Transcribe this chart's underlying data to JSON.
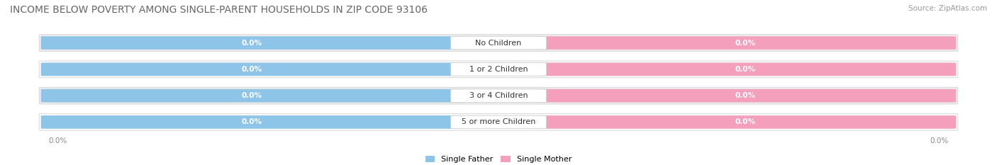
{
  "title": "INCOME BELOW POVERTY AMONG SINGLE-PARENT HOUSEHOLDS IN ZIP CODE 93106",
  "source_text": "Source: ZipAtlas.com",
  "categories": [
    "No Children",
    "1 or 2 Children",
    "3 or 4 Children",
    "5 or more Children"
  ],
  "father_values": [
    0.0,
    0.0,
    0.0,
    0.0
  ],
  "mother_values": [
    0.0,
    0.0,
    0.0,
    0.0
  ],
  "father_color": "#8EC4E8",
  "mother_color": "#F4A0BC",
  "row_bg_color": "#EBEBEB",
  "row_bg_color2": "#F8F8F8",
  "title_fontsize": 10,
  "source_fontsize": 7.5,
  "cat_fontsize": 8,
  "value_fontsize": 7.5,
  "legend_fontsize": 8,
  "axis_label_fontsize": 7.5,
  "x_left_label": "0.0%",
  "x_right_label": "0.0%",
  "father_label": "Single Father",
  "mother_label": "Single Mother"
}
